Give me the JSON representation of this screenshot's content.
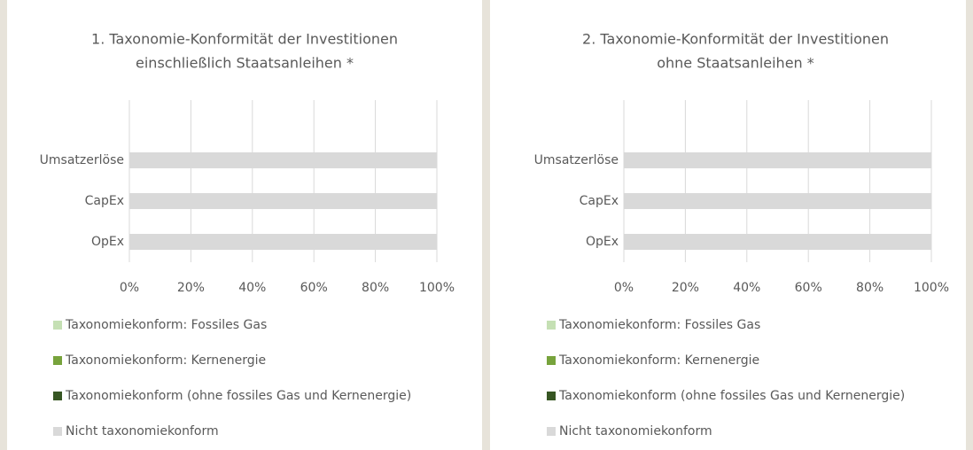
{
  "chart_data": [
    {
      "type": "stacked-bar-horizontal",
      "title": [
        "1. Taxonomie-Konformität der Investitionen",
        "einschließlich Staatsanleihen *"
      ],
      "categories": [
        "Umsatzerlöse",
        "CapEx",
        "OpEx"
      ],
      "series": [
        {
          "name": "Taxonomiekonform: Fossiles Gas",
          "color": "#c5e0b4",
          "values": [
            0,
            0,
            0
          ]
        },
        {
          "name": "Taxonomiekonform: Kernenergie",
          "color": "#77a33c",
          "values": [
            0,
            0,
            0
          ]
        },
        {
          "name": "Taxonomiekonform (ohne fossiles Gas und Kernenergie)",
          "color": "#375623",
          "values": [
            0,
            0,
            0
          ]
        },
        {
          "name": "Nicht taxonomiekonform",
          "color": "#d9d9d9",
          "values": [
            100,
            100,
            100
          ]
        }
      ],
      "xlim": [
        0,
        100
      ],
      "xticks": [
        {
          "value": 0,
          "label": "0%"
        },
        {
          "value": 20,
          "label": "20%"
        },
        {
          "value": 40,
          "label": "40%"
        },
        {
          "value": 60,
          "label": "60%"
        },
        {
          "value": 80,
          "label": "80%"
        },
        {
          "value": 100,
          "label": "100%"
        }
      ],
      "grid": true,
      "legend": "bottom"
    },
    {
      "type": "stacked-bar-horizontal",
      "title": [
        "2. Taxonomie-Konformität der Investitionen",
        "ohne Staatsanleihen *"
      ],
      "categories": [
        "Umsatzerlöse",
        "CapEx",
        "OpEx"
      ],
      "series": [
        {
          "name": "Taxonomiekonform: Fossiles Gas",
          "color": "#c5e0b4",
          "values": [
            0,
            0,
            0
          ]
        },
        {
          "name": "Taxonomiekonform: Kernenergie",
          "color": "#77a33c",
          "values": [
            0,
            0,
            0
          ]
        },
        {
          "name": "Taxonomiekonform (ohne fossiles Gas und Kernenergie)",
          "color": "#375623",
          "values": [
            0,
            0,
            0
          ]
        },
        {
          "name": "Nicht taxonomiekonform",
          "color": "#d9d9d9",
          "values": [
            100,
            100,
            100
          ]
        }
      ],
      "xlim": [
        0,
        100
      ],
      "xticks": [
        {
          "value": 0,
          "label": "0%"
        },
        {
          "value": 20,
          "label": "20%"
        },
        {
          "value": 40,
          "label": "40%"
        },
        {
          "value": 60,
          "label": "60%"
        },
        {
          "value": 80,
          "label": "80%"
        },
        {
          "value": 100,
          "label": "100%"
        }
      ],
      "grid": true,
      "legend": "bottom"
    }
  ]
}
